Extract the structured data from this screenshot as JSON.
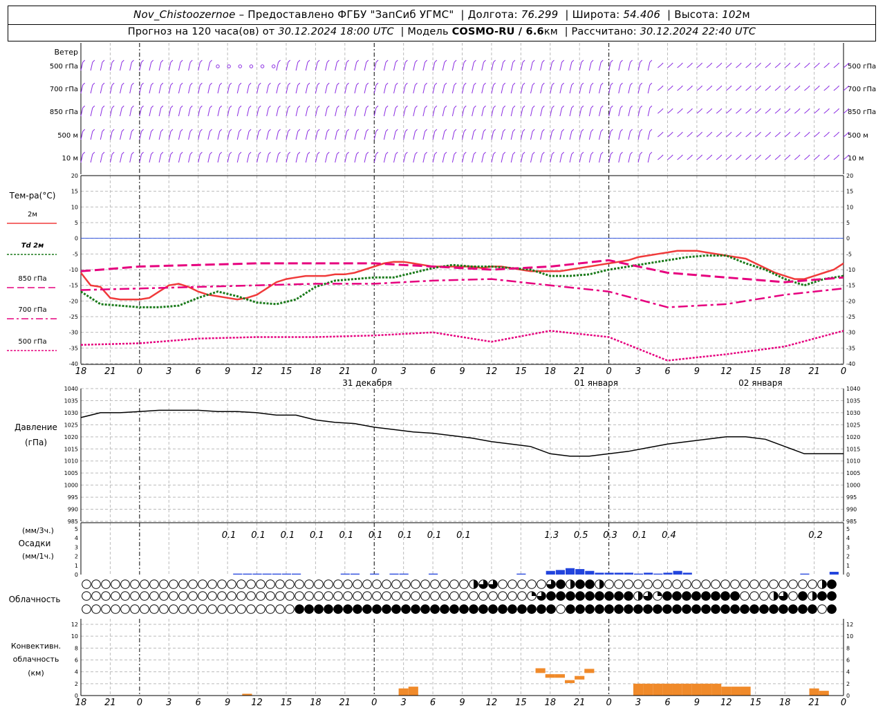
{
  "header": {
    "station": "Nov_Chistoozernoe",
    "provider": "– Предоставлено ФГБУ \"ЗапСиб УГМС\"",
    "lon_label": "Долгота:",
    "lon": "76.299",
    "lat_label": "Широта:",
    "lat": "54.406",
    "alt_label": "Высота:",
    "alt": "102",
    "alt_unit": "м",
    "forecast_label": "Прогноз на 120 часа(ов) от",
    "forecast_start": "30.12.2024 18:00 UTC",
    "model_label": "Модель",
    "model": "COSMO-RU / 6.6",
    "model_unit": "км",
    "calc_label": "Рассчитано:",
    "calc_time": "30.12.2024 22:40 UTC"
  },
  "labels": {
    "wind": "Ветер",
    "wind_levels": [
      "500 гПа",
      "700 гПа",
      "850 гПа",
      "500 м",
      "10  м"
    ],
    "temp_title": "Тем-ра(°C)",
    "temp_legend": [
      "2м",
      "Td  2м",
      "850 гПа",
      "700 гПа",
      "500 гПа"
    ],
    "pressure_title": [
      "Давление",
      "(гПа)"
    ],
    "precip_title": [
      "(мм/3ч.)",
      "Осадки",
      "(мм/1ч.)"
    ],
    "cloud_title": "Облачность",
    "conv_title": [
      "Конвективн.",
      "облачность",
      "(км)"
    ]
  },
  "colors": {
    "wind": "#8a2be2",
    "t2m": "#f03a3a",
    "td2m": "#1a7a1a",
    "t850": "#e6007e",
    "t700": "#e6007e",
    "t500": "#e6007e",
    "zero_line": "#3355dd",
    "pressure": "#000000",
    "precip": "#2244dd",
    "conv": "#f08a2a"
  },
  "chart_data": [
    {
      "type": "line",
      "panel": "temperature",
      "x_hour_labels": [
        "18",
        "21",
        "0",
        "3",
        "6",
        "9",
        "12",
        "15",
        "18",
        "21",
        "0",
        "3",
        "6",
        "9",
        "12",
        "15",
        "18",
        "21",
        "0",
        "3",
        "6",
        "9",
        "12",
        "15",
        "18",
        "21",
        "0"
      ],
      "day_labels": [
        "31 декабря",
        "01 января",
        "02 января"
      ],
      "ylim": [
        -40,
        20
      ],
      "y_ticks": [
        20,
        15,
        10,
        5,
        0,
        -5,
        -10,
        -15,
        -20,
        -25,
        -30,
        -35,
        -40
      ],
      "series": [
        {
          "name": "2м",
          "style": "solid",
          "x": [
            0,
            1,
            2,
            3,
            4,
            5,
            6,
            7,
            8,
            9,
            10,
            11,
            12,
            13,
            14,
            15,
            16,
            17,
            18,
            19,
            20,
            21,
            22,
            23,
            24,
            25,
            26,
            27,
            28,
            29,
            30,
            31,
            32,
            33,
            34,
            35,
            36,
            37,
            38,
            39,
            40,
            41,
            42,
            43,
            44,
            45,
            46,
            47,
            48,
            49,
            50,
            51,
            52,
            53,
            54,
            55,
            56,
            57,
            58,
            59,
            60,
            61,
            62,
            63,
            64,
            65,
            66,
            67,
            68,
            69,
            70,
            71,
            72,
            73,
            74,
            75,
            76,
            77,
            78
          ],
          "values": [
            -11,
            -15,
            -15.5,
            -19,
            -19.5,
            -19.5,
            -19.5,
            -19,
            -17,
            -15,
            -14.5,
            -15.5,
            -17,
            -18,
            -18.5,
            -19,
            -19.5,
            -19,
            -18,
            -16,
            -14,
            -13,
            -12.5,
            -12,
            -12,
            -12,
            -11.5,
            -11.5,
            -11,
            -10,
            -9,
            -8,
            -7.5,
            -7.5,
            -8,
            -8.5,
            -9,
            -9,
            -9,
            -9,
            -9,
            -9.5,
            -9,
            -9,
            -9.5,
            -10,
            -10.5,
            -10.5,
            -10.5,
            -10.5,
            -10,
            -9.5,
            -9,
            -8.5,
            -8,
            -7.5,
            -7,
            -6,
            -5.5,
            -5,
            -4.5,
            -4,
            -4,
            -4,
            -4.5,
            -5,
            -5.5,
            -6,
            -6.5,
            -8,
            -9.5,
            -11,
            -12,
            -13,
            -13,
            -12,
            -11,
            -10,
            -8
          ]
        },
        {
          "name": "Td  2м",
          "style": "dotted",
          "x": [
            0,
            2,
            4,
            6,
            8,
            10,
            12,
            14,
            16,
            18,
            20,
            22,
            24,
            26,
            28,
            30,
            32,
            34,
            36,
            38,
            40,
            42,
            44,
            46,
            48,
            50,
            52,
            54,
            56,
            58,
            60,
            62,
            64,
            66,
            68,
            70,
            72,
            74,
            76,
            78
          ],
          "values": [
            -17,
            -21,
            -21.5,
            -22,
            -22,
            -21.5,
            -19,
            -17,
            -18.5,
            -20.5,
            -21,
            -19.5,
            -15.5,
            -13.5,
            -13,
            -12.5,
            -12.5,
            -11,
            -9.5,
            -8.5,
            -9,
            -9,
            -9.5,
            -10,
            -12,
            -12,
            -11.5,
            -10,
            -9,
            -8,
            -7,
            -6,
            -5.5,
            -5.5,
            -8,
            -10,
            -13,
            -15,
            -13,
            -12
          ]
        },
        {
          "name": "850 гПа",
          "style": "dashed",
          "x": [
            0,
            6,
            12,
            18,
            24,
            30,
            36,
            42,
            48,
            54,
            60,
            66,
            72,
            78
          ],
          "values": [
            -10.5,
            -9,
            -8.5,
            -8,
            -8,
            -8,
            -9,
            -10,
            -9,
            -7,
            -11,
            -12.5,
            -14,
            -12.5
          ]
        },
        {
          "name": "700 гПа",
          "style": "dashdot",
          "x": [
            0,
            6,
            12,
            18,
            24,
            30,
            36,
            42,
            48,
            54,
            60,
            66,
            72,
            78
          ],
          "values": [
            -16.5,
            -16,
            -15.5,
            -15,
            -14.5,
            -14.5,
            -13.5,
            -13,
            -15,
            -17,
            -22,
            -21,
            -18,
            -16
          ]
        },
        {
          "name": "500 гПа",
          "style": "dotted-fine",
          "x": [
            0,
            6,
            12,
            18,
            24,
            30,
            36,
            42,
            48,
            54,
            60,
            66,
            72,
            78
          ],
          "values": [
            -34,
            -33.5,
            -32,
            -31.5,
            -31.5,
            -31,
            -30,
            -33,
            -29.5,
            -31.5,
            -39,
            -37,
            -34.5,
            -29.5
          ]
        }
      ]
    },
    {
      "type": "line",
      "panel": "pressure",
      "ylim": [
        985,
        1040
      ],
      "y_ticks": [
        1040,
        1035,
        1030,
        1025,
        1020,
        1015,
        1010,
        1005,
        1000,
        995,
        990,
        985
      ],
      "series": [
        {
          "name": "Давление",
          "x": [
            0,
            2,
            4,
            6,
            8,
            10,
            12,
            14,
            16,
            18,
            20,
            22,
            24,
            26,
            28,
            30,
            32,
            34,
            36,
            38,
            40,
            42,
            44,
            46,
            48,
            50,
            52,
            54,
            56,
            58,
            60,
            62,
            64,
            66,
            68,
            70,
            72,
            74,
            76,
            78
          ],
          "values": [
            1028,
            1030,
            1030,
            1030.5,
            1031,
            1031,
            1031,
            1030.5,
            1030.5,
            1030,
            1029,
            1029,
            1027,
            1026,
            1025.5,
            1024,
            1023,
            1022,
            1021.5,
            1020.5,
            1019.5,
            1018,
            1017,
            1016,
            1013,
            1012,
            1012,
            1013,
            1014,
            1015.5,
            1017,
            1018,
            1019,
            1020,
            1020,
            1019,
            1016,
            1013,
            1013,
            1013
          ]
        }
      ]
    },
    {
      "type": "bar",
      "panel": "precipitation",
      "ylim": [
        0,
        5
      ],
      "y_ticks": [
        5,
        4,
        3,
        2,
        1,
        0
      ],
      "totals_3h": [
        {
          "x": 15,
          "label": "0.1"
        },
        {
          "x": 18,
          "label": "0.1"
        },
        {
          "x": 21,
          "label": "0.1"
        },
        {
          "x": 24,
          "label": "0.1"
        },
        {
          "x": 27,
          "label": "0.1"
        },
        {
          "x": 30,
          "label": "0.1"
        },
        {
          "x": 33,
          "label": "0.1"
        },
        {
          "x": 36,
          "label": "0.1"
        },
        {
          "x": 39,
          "label": "0.1"
        },
        {
          "x": 48,
          "label": "1.3"
        },
        {
          "x": 51,
          "label": "0.5"
        },
        {
          "x": 54,
          "label": "0.3"
        },
        {
          "x": 57,
          "label": "0.1"
        },
        {
          "x": 60,
          "label": "0.4"
        },
        {
          "x": 75,
          "label": "0.2"
        }
      ],
      "hourly": [
        {
          "x": 16,
          "value": 0.1
        },
        {
          "x": 17,
          "value": 0.1
        },
        {
          "x": 18,
          "value": 0.1
        },
        {
          "x": 19,
          "value": 0.1
        },
        {
          "x": 20,
          "value": 0.1
        },
        {
          "x": 21,
          "value": 0.1
        },
        {
          "x": 22,
          "value": 0.1
        },
        {
          "x": 27,
          "value": 0.1
        },
        {
          "x": 28,
          "value": 0.1
        },
        {
          "x": 30,
          "value": 0.1
        },
        {
          "x": 32,
          "value": 0.1
        },
        {
          "x": 33,
          "value": 0.1
        },
        {
          "x": 36,
          "value": 0.1
        },
        {
          "x": 45,
          "value": 0.1
        },
        {
          "x": 48,
          "value": 0.4
        },
        {
          "x": 49,
          "value": 0.5
        },
        {
          "x": 50,
          "value": 0.7
        },
        {
          "x": 51,
          "value": 0.6
        },
        {
          "x": 52,
          "value": 0.4
        },
        {
          "x": 53,
          "value": 0.2
        },
        {
          "x": 54,
          "value": 0.2
        },
        {
          "x": 55,
          "value": 0.2
        },
        {
          "x": 56,
          "value": 0.2
        },
        {
          "x": 57,
          "value": 0.1
        },
        {
          "x": 58,
          "value": 0.2
        },
        {
          "x": 59,
          "value": 0.1
        },
        {
          "x": 60,
          "value": 0.2
        },
        {
          "x": 61,
          "value": 0.4
        },
        {
          "x": 62,
          "value": 0.2
        },
        {
          "x": 74,
          "value": 0.1
        },
        {
          "x": 77,
          "value": 0.3
        }
      ]
    },
    {
      "type": "table",
      "panel": "cloudiness",
      "rows": [
        {
          "level": "upper",
          "values": "000000000000000000000000000000000000000000000000000000000000000000000000000000"
        },
        {
          "level": "middle",
          "values": "000000000000000000000000000000000000000000000000000000000000000000000000000000"
        },
        {
          "level": "lower",
          "values": "000000000000000000000000000000000000000000000000000000000000000000000000000000"
        }
      ],
      "cover_x": [
        0,
        78
      ],
      "upper_cover": [
        [
          40,
          0.5
        ],
        [
          41,
          0.75
        ],
        [
          42,
          0.75
        ],
        [
          48,
          0.75
        ],
        [
          49,
          1
        ],
        [
          50,
          0.5
        ],
        [
          51,
          1
        ],
        [
          52,
          1
        ],
        [
          53,
          0.5
        ],
        [
          76,
          0.5
        ],
        [
          77,
          1
        ],
        [
          78,
          0.75
        ]
      ],
      "middle_cover": [
        [
          46,
          0.25
        ],
        [
          47,
          0.75
        ],
        [
          48,
          1
        ],
        [
          49,
          1
        ],
        [
          50,
          1
        ],
        [
          51,
          1
        ],
        [
          52,
          1
        ],
        [
          53,
          1
        ],
        [
          54,
          1
        ],
        [
          55,
          1
        ],
        [
          56,
          1
        ],
        [
          57,
          0.5
        ],
        [
          58,
          0.75
        ],
        [
          59,
          0.25
        ],
        [
          60,
          1
        ],
        [
          61,
          1
        ],
        [
          62,
          1
        ],
        [
          63,
          1
        ],
        [
          64,
          1
        ],
        [
          65,
          1
        ],
        [
          66,
          1
        ],
        [
          67,
          1
        ],
        [
          71,
          0.5
        ],
        [
          72,
          0.75
        ],
        [
          74,
          1
        ],
        [
          75,
          0.5
        ],
        [
          76,
          1
        ],
        [
          77,
          1
        ],
        [
          78,
          1
        ]
      ],
      "lower_cover_ranges": [
        [
          22,
          48
        ],
        [
          50,
          75
        ],
        [
          77,
          78
        ]
      ]
    },
    {
      "type": "bar",
      "panel": "convective",
      "ylim": [
        0,
        12
      ],
      "y_ticks": [
        12,
        10,
        8,
        6,
        4,
        2,
        0
      ],
      "bars": [
        {
          "x": 17,
          "bottom": 0,
          "top": 0.3
        },
        {
          "x": 33,
          "bottom": 0,
          "top": 1.2
        },
        {
          "x": 34,
          "bottom": 0,
          "top": 1.5
        },
        {
          "x": 47,
          "bottom": 3.8,
          "top": 4.6
        },
        {
          "x": 48,
          "bottom": 3.0,
          "top": 3.6
        },
        {
          "x": 49,
          "bottom": 3.0,
          "top": 3.6
        },
        {
          "x": 50,
          "bottom": 2.1,
          "top": 2.6
        },
        {
          "x": 51,
          "bottom": 2.7,
          "top": 3.3
        },
        {
          "x": 52,
          "bottom": 3.8,
          "top": 4.5
        },
        {
          "x": 57,
          "bottom": 0,
          "top": 2.0
        },
        {
          "x": 58,
          "bottom": 0,
          "top": 2.0
        },
        {
          "x": 59,
          "bottom": 0,
          "top": 2.0
        },
        {
          "x": 60,
          "bottom": 0,
          "top": 2.0
        },
        {
          "x": 61,
          "bottom": 0,
          "top": 2.0
        },
        {
          "x": 62,
          "bottom": 0,
          "top": 2.0
        },
        {
          "x": 63,
          "bottom": 0,
          "top": 2.0
        },
        {
          "x": 64,
          "bottom": 0,
          "top": 2.0
        },
        {
          "x": 65,
          "bottom": 0,
          "top": 2.0
        },
        {
          "x": 66,
          "bottom": 0,
          "top": 1.5
        },
        {
          "x": 67,
          "bottom": 0,
          "top": 1.5
        },
        {
          "x": 68,
          "bottom": 0,
          "top": 1.5
        },
        {
          "x": 75,
          "bottom": 0,
          "top": 1.2
        },
        {
          "x": 76,
          "bottom": 0,
          "top": 0.8
        }
      ]
    }
  ]
}
